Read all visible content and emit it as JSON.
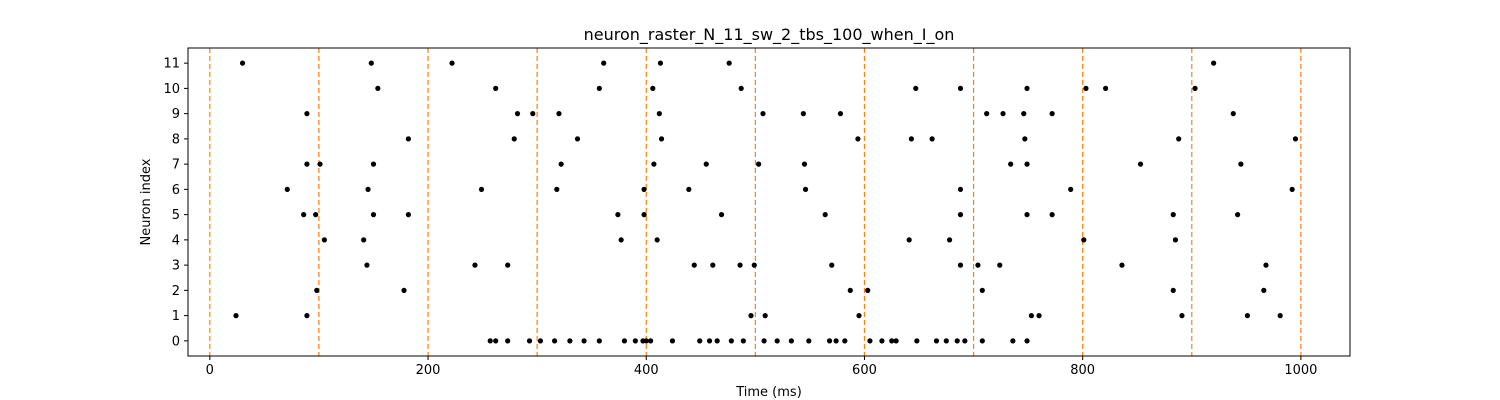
{
  "chart_data": {
    "type": "scatter",
    "title": "neuron_raster_N_11_sw_2_tbs_100_when_I_on",
    "xlabel": "Time (ms)",
    "ylabel": "Neuron index",
    "xlim": [
      -20,
      1045
    ],
    "ylim": [
      -0.6,
      11.6
    ],
    "xticks": [
      0,
      200,
      400,
      600,
      800,
      1000
    ],
    "yticks": [
      0,
      1,
      2,
      3,
      4,
      5,
      6,
      7,
      8,
      9,
      10,
      11
    ],
    "grid": false,
    "marker_color": "#000000",
    "vlines": {
      "x": [
        0,
        100,
        200,
        300,
        400,
        500,
        600,
        700,
        800,
        900,
        1000
      ],
      "color": "#ff7f0e",
      "style": "dashed"
    },
    "series": [
      {
        "points": [
          [
            24,
            1
          ],
          [
            30,
            11
          ],
          [
            71,
            6
          ],
          [
            86,
            5
          ],
          [
            89,
            9
          ],
          [
            89,
            7
          ],
          [
            89,
            1
          ],
          [
            97,
            5
          ],
          [
            98,
            2
          ],
          [
            101,
            7
          ],
          [
            105,
            4
          ],
          [
            141,
            4
          ],
          [
            144,
            3
          ],
          [
            145,
            6
          ],
          [
            148,
            11
          ],
          [
            150,
            7
          ],
          [
            150,
            5
          ],
          [
            154,
            10
          ],
          [
            178,
            2
          ],
          [
            182,
            8
          ],
          [
            182,
            5
          ],
          [
            222,
            11
          ],
          [
            243,
            3
          ],
          [
            249,
            6
          ],
          [
            257,
            0
          ],
          [
            262,
            0
          ],
          [
            262,
            10
          ],
          [
            273,
            3
          ],
          [
            273,
            0
          ],
          [
            279,
            8
          ],
          [
            282,
            9
          ],
          [
            293,
            0
          ],
          [
            296,
            9
          ],
          [
            303,
            0
          ],
          [
            316,
            0
          ],
          [
            318,
            6
          ],
          [
            320,
            9
          ],
          [
            322,
            7
          ],
          [
            330,
            0
          ],
          [
            337,
            8
          ],
          [
            343,
            0
          ],
          [
            357,
            10
          ],
          [
            357,
            0
          ],
          [
            361,
            11
          ],
          [
            374,
            5
          ],
          [
            377,
            4
          ],
          [
            380,
            0
          ],
          [
            390,
            0
          ],
          [
            397,
            0
          ],
          [
            398,
            6
          ],
          [
            398,
            5
          ],
          [
            400,
            0
          ],
          [
            404,
            0
          ],
          [
            406,
            10
          ],
          [
            407,
            7
          ],
          [
            410,
            4
          ],
          [
            412,
            9
          ],
          [
            413,
            11
          ],
          [
            414,
            8
          ],
          [
            424,
            0
          ],
          [
            439,
            6
          ],
          [
            444,
            3
          ],
          [
            449,
            0
          ],
          [
            455,
            7
          ],
          [
            458,
            0
          ],
          [
            461,
            3
          ],
          [
            465,
            0
          ],
          [
            469,
            5
          ],
          [
            476,
            11
          ],
          [
            478,
            0
          ],
          [
            486,
            3
          ],
          [
            487,
            10
          ],
          [
            489,
            0
          ],
          [
            496,
            1
          ],
          [
            499,
            3
          ],
          [
            503,
            7
          ],
          [
            507,
            9
          ],
          [
            508,
            0
          ],
          [
            509,
            1
          ],
          [
            520,
            0
          ],
          [
            533,
            0
          ],
          [
            544,
            9
          ],
          [
            545,
            7
          ],
          [
            546,
            6
          ],
          [
            549,
            0
          ],
          [
            564,
            5
          ],
          [
            568,
            0
          ],
          [
            570,
            3
          ],
          [
            574,
            0
          ],
          [
            578,
            9
          ],
          [
            582,
            0
          ],
          [
            587,
            2
          ],
          [
            594,
            8
          ],
          [
            595,
            1
          ],
          [
            603,
            2
          ],
          [
            605,
            0
          ],
          [
            616,
            0
          ],
          [
            625,
            0
          ],
          [
            629,
            0
          ],
          [
            641,
            4
          ],
          [
            643,
            8
          ],
          [
            647,
            10
          ],
          [
            648,
            0
          ],
          [
            662,
            8
          ],
          [
            666,
            0
          ],
          [
            675,
            0
          ],
          [
            678,
            4
          ],
          [
            685,
            0
          ],
          [
            688,
            6
          ],
          [
            688,
            5
          ],
          [
            688,
            3
          ],
          [
            688,
            10
          ],
          [
            692,
            0
          ],
          [
            704,
            3
          ],
          [
            708,
            0
          ],
          [
            708,
            2
          ],
          [
            712,
            9
          ],
          [
            724,
            3
          ],
          [
            727,
            9
          ],
          [
            734,
            7
          ],
          [
            736,
            0
          ],
          [
            746,
            9
          ],
          [
            747,
            8
          ],
          [
            749,
            10
          ],
          [
            749,
            5
          ],
          [
            749,
            7
          ],
          [
            749,
            0
          ],
          [
            753,
            1
          ],
          [
            760,
            1
          ],
          [
            772,
            9
          ],
          [
            772,
            5
          ],
          [
            789,
            6
          ],
          [
            801,
            4
          ],
          [
            803,
            10
          ],
          [
            821,
            10
          ],
          [
            836,
            3
          ],
          [
            853,
            7
          ],
          [
            883,
            5
          ],
          [
            883,
            2
          ],
          [
            885,
            4
          ],
          [
            888,
            8
          ],
          [
            891,
            1
          ],
          [
            920,
            11
          ],
          [
            903,
            10
          ],
          [
            938,
            9
          ],
          [
            942,
            5
          ],
          [
            945,
            7
          ],
          [
            951,
            1
          ],
          [
            966,
            2
          ],
          [
            968,
            3
          ],
          [
            981,
            1
          ],
          [
            992,
            6
          ],
          [
            995,
            8
          ]
        ]
      }
    ]
  }
}
